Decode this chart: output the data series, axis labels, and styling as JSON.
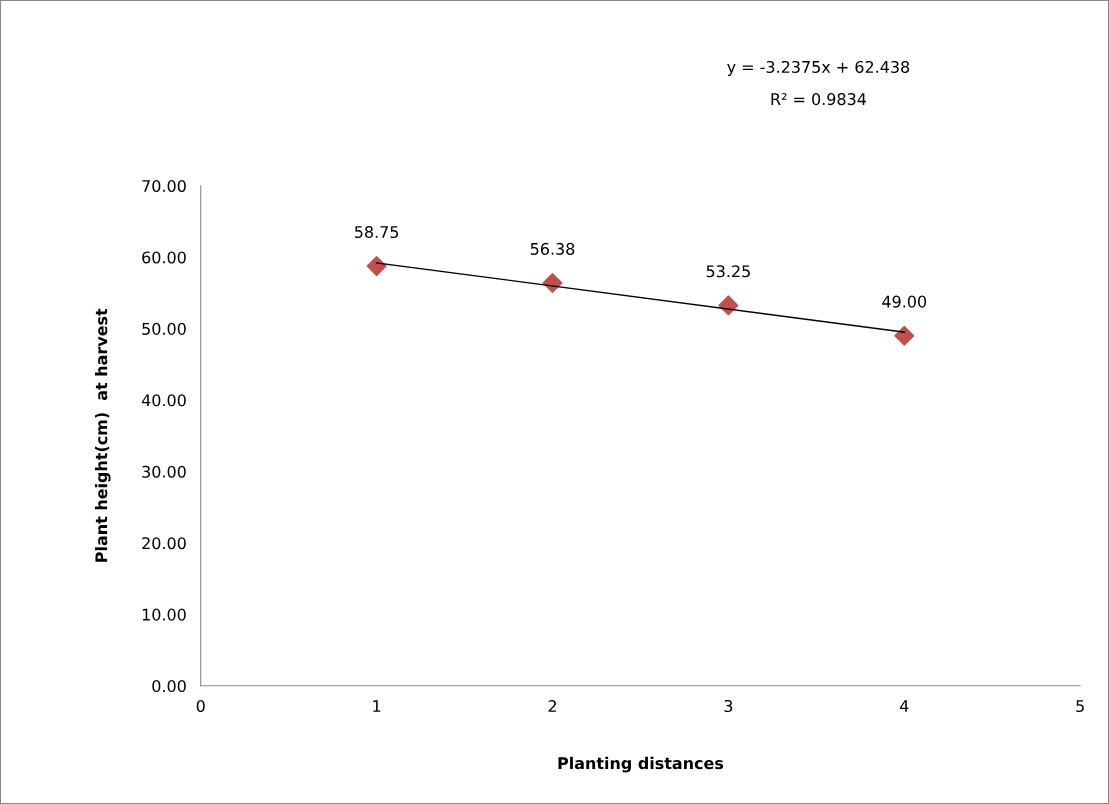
{
  "chart_data": {
    "type": "scatter",
    "xlabel": "Planting distances",
    "ylabel": "Plant height(cm)  at harvest",
    "annotations": [
      "y = -3.2375x + 62.438",
      "R² = 0.9834"
    ],
    "xlim": [
      0,
      5
    ],
    "xticks": [
      0,
      1,
      2,
      3,
      4,
      5
    ],
    "ylim": [
      0,
      70
    ],
    "yticks": [
      {
        "value": 0,
        "label": "0.00"
      },
      {
        "value": 10,
        "label": "10.00"
      },
      {
        "value": 20,
        "label": "20.00"
      },
      {
        "value": 30,
        "label": "30.00"
      },
      {
        "value": 40,
        "label": "40.00"
      },
      {
        "value": 50,
        "label": "50.00"
      },
      {
        "value": 60,
        "label": "60.00"
      },
      {
        "value": 70,
        "label": "70.00"
      }
    ],
    "grid": false,
    "series": [
      {
        "color": "#c0504d",
        "marker": "diamond",
        "x": [
          1,
          2,
          3,
          4
        ],
        "values": [
          58.75,
          56.38,
          53.25,
          49.0
        ],
        "value_labels": [
          "58.75",
          "56.38",
          "53.25",
          "49.00"
        ]
      },
      {
        "type": "line",
        "color": "#000000",
        "marker": "none",
        "line_style": "solid",
        "x": [
          1,
          4
        ],
        "values": [
          59.2,
          49.5
        ]
      }
    ]
  }
}
